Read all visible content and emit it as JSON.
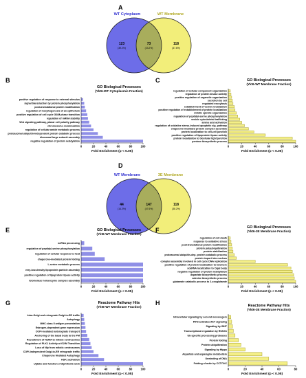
{
  "panels": {
    "A": "A",
    "B": "B",
    "C": "C",
    "D": "D",
    "E": "E",
    "F": "F",
    "G": "G",
    "H": "H"
  },
  "colors": {
    "blue": "#6d6de8",
    "blue_bar": "#8f8fe6",
    "yellow": "#f2ee7a",
    "yellow_bar": "#f4ef86",
    "overlap": "#a8ad5c",
    "text_blue": "#2f2fd0",
    "text_yellow": "#b0a821"
  },
  "chart_data": [
    {
      "id": "A",
      "type": "venn",
      "sets": [
        {
          "name": "WT Cytoplasm",
          "only": "123",
          "only_pct": "(39.2%)"
        },
        {
          "name": "WT Membrane",
          "only": "118",
          "only_pct": "(37.6%)"
        }
      ],
      "overlap": "73",
      "overlap_pct": "(23.2%)"
    },
    {
      "id": "B",
      "type": "bar",
      "title": "GO Biological Processes",
      "subtitle": "(Ykt6-WT Cytoplasmic Fraction)",
      "xlabel": "Fold Enrichment (p < 0.05)",
      "xlim": [
        0,
        100
      ],
      "ticks": [
        0,
        20,
        40,
        60,
        80,
        100
      ],
      "categories": [
        "positive regulation of response to external stimulus",
        "signal transduction by protein phosphorylation",
        "post-translational protein modification",
        "regulation of morphogenesis of an epithelium",
        "positive regulation of cell cycle G2/M phase transition",
        "regulation of mRNA stability",
        "Wnt signaling pathway, planar cell polarity pathway",
        "chromosome condensation",
        "regulation of cellular amide metabolic process",
        "proteasomal ubiquitin-independent protein catabolic process",
        "ribosomal large subunit assembly",
        "negative regulation of protein neddylation"
      ],
      "values": [
        3,
        5,
        6,
        8,
        10,
        11,
        13,
        16,
        20,
        27,
        35,
        100
      ]
    },
    {
      "id": "C",
      "type": "bar",
      "title": "GO Biological Processes",
      "subtitle": "(Ykt6-WT Membrane Fraction)",
      "xlabel": "Fold Enrichment (p < 0.05)",
      "xlim": [
        0,
        100
      ],
      "ticks": [
        0,
        20,
        40,
        60,
        80,
        100
      ],
      "categories": [
        "regulation of cellular component organization",
        "regulation of protein kinase activity",
        "positive regulation of organelle organization",
        "secretion by cell",
        "regulated exocytosis",
        "establishment of vesicle localization",
        "positive regulation of establishment of protein localization",
        "mitotic spindle organization",
        "regulation of peptidyl-serine phosphorylation",
        "vesicle cytoskeletal trafficking",
        "amino acid activation",
        "regulation of oxidative stress-induced apoptotic sig. pathway",
        "chaperone-mediated protein complex assembly",
        "protein localization to cell-cell junction",
        "positive regulation of lipoprotein lipase activity",
        "protein localization to bicellular tight junction",
        "pentose biosynthetic process"
      ],
      "values": [
        3,
        4,
        5,
        6,
        7,
        9,
        10,
        12,
        14,
        17,
        20,
        24,
        30,
        38,
        55,
        95,
        100
      ]
    },
    {
      "id": "D",
      "type": "venn",
      "sets": [
        {
          "name": "WT Membrane",
          "only": "44",
          "only_pct": "(14.2%)"
        },
        {
          "name": "3E Membrane",
          "only": "118",
          "only_pct": "(38.2%)"
        }
      ],
      "overlap": "147",
      "overlap_pct": "(47.6%)"
    },
    {
      "id": "E",
      "type": "bar",
      "title": "GO Biological Processes",
      "subtitle": "(Ykt6-WT Membrane Fraction)",
      "xlabel": "Fold Enrichment (p < 0.05)",
      "xlim": [
        0,
        100
      ],
      "ticks": [
        0,
        20,
        40,
        60,
        80,
        100
      ],
      "categories": [
        "ncRNA processing",
        "regulation of peptidyl-serine phosphorylation",
        "regulation of cellular response to heat",
        "chaperone-mediated protein folding",
        "L-serine metabolic process",
        "very-low-density lipoprotein particle assembly",
        "positive regulation of lipoprotein lipase activity",
        "telomerase holoenzyme complex assembly"
      ],
      "values": [
        5,
        18,
        22,
        38,
        100,
        100,
        100,
        100
      ]
    },
    {
      "id": "F",
      "type": "bar",
      "title": "GO Biological Processes",
      "subtitle": "(Ykt6-3E Membrane Fraction)",
      "xlabel": "Fold Enrichment (p < 0.05)",
      "xlim": [
        0,
        100
      ],
      "ticks": [
        0,
        20,
        40,
        60,
        80,
        100
      ],
      "categories": [
        "regulation of cell death",
        "response to oxidative stress",
        "post-translational protein modification",
        "protein polyubiquitination",
        "protein stabilization",
        "proteasomal ubiquitin-dep. protein catabolic process",
        "protein import into nucleus",
        "complex assembly involved in cell cycle DNA replication",
        "positive regulation of protein localization to telomere",
        "scaRNA localization to Cajal body",
        "negative regulation of protein neddylation",
        "aspartate biosynthetic process",
        "adenine biosynthetic process",
        "glutamate catabolic process to 2-oxoglutarate"
      ],
      "values": [
        3,
        4,
        5,
        6,
        7,
        9,
        12,
        40,
        88,
        93,
        95,
        97,
        98,
        100
      ]
    },
    {
      "id": "G",
      "type": "bar",
      "title": "Reactome Pathway Hits",
      "subtitle": "(Ykt6-WT Membrane Fraction)",
      "xlabel": "Fold Enrichment (p < 0.05)",
      "xlim": [
        0,
        100
      ],
      "ticks": [
        0,
        20,
        40,
        60,
        80,
        100
      ],
      "categories": [
        "Intra-Golgi and retrograde Golgi-to-ER traffic",
        "Autophagy",
        "MHC class II antigen presentation",
        "Estrogen-dependent gene expression",
        "COPI-mediated anterograde transport",
        "Anchoring of the basal body to the PM",
        "Recruitment of NuMA to mitotic centrosomes",
        "Regulation of PLK1 Activity at G2/M Transition",
        "Loss of Nlp from mitotic centrosomes",
        "COPI-independent Golgi-to-ER retrograde traffic",
        "Chaperone Mediated Autophagy",
        "HSF1 activation",
        "Uptake and function of diphtheria toxin"
      ],
      "values": [
        4,
        5,
        6,
        7,
        8,
        10,
        13,
        15,
        17,
        20,
        28,
        37,
        100
      ]
    },
    {
      "id": "H",
      "type": "bar",
      "title": "Reactome Pathway Hits",
      "subtitle": "(Ykt6-3E Membrane Fraction)",
      "xlabel": "Fold Enrichment (p < 0.05)",
      "xlim": [
        0,
        80
      ],
      "ticks": [
        0,
        20,
        40,
        60,
        80
      ],
      "categories": [
        "Intracellular signaling by second messengers",
        "PIP3 activates AKT signaling",
        "Signaling by WNT",
        "Transcriptional regulation by RUNX1",
        "Ub-specific processing proteases",
        "Protein folding",
        "Protein ubiquitination",
        "Signaling by Hippo",
        "Aspartate and asparagine metabolism",
        "Unwinding of DNA",
        "Folding of actin by CCT/TriC"
      ],
      "values": [
        3,
        4,
        5,
        6,
        8,
        12,
        15,
        20,
        40,
        48,
        70
      ]
    }
  ]
}
